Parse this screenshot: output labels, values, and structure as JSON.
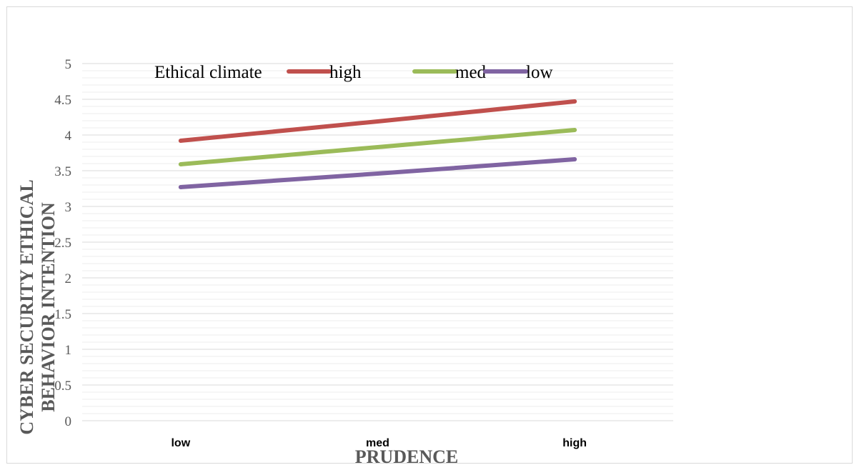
{
  "chart_data": {
    "type": "line",
    "title": "",
    "xlabel": "PRUDENCE",
    "ylabel_line1": "CYBER SECURITY ETHICAL",
    "ylabel_line2": "BEHAVIOR INTENTION",
    "categories": [
      "low",
      "med",
      "high"
    ],
    "ylim": [
      0,
      5
    ],
    "yticks": [
      "0",
      "0.5",
      "1",
      "1.5",
      "2",
      "2.5",
      "3",
      "3.5",
      "4",
      "4.5",
      "5"
    ],
    "ytick_values": [
      0,
      0.5,
      1,
      1.5,
      2,
      2.5,
      3,
      3.5,
      4,
      4.5,
      5
    ],
    "grid": true,
    "legend_title": "Ethical climate",
    "legend_position": "top",
    "series": [
      {
        "name": "high",
        "color": "#c0504d",
        "values": [
          3.92,
          4.19,
          4.47
        ]
      },
      {
        "name": "med",
        "color": "#9bbb59",
        "values": [
          3.59,
          3.83,
          4.07
        ]
      },
      {
        "name": "low",
        "color": "#8064a2",
        "values": [
          3.27,
          3.46,
          3.66
        ]
      }
    ]
  }
}
